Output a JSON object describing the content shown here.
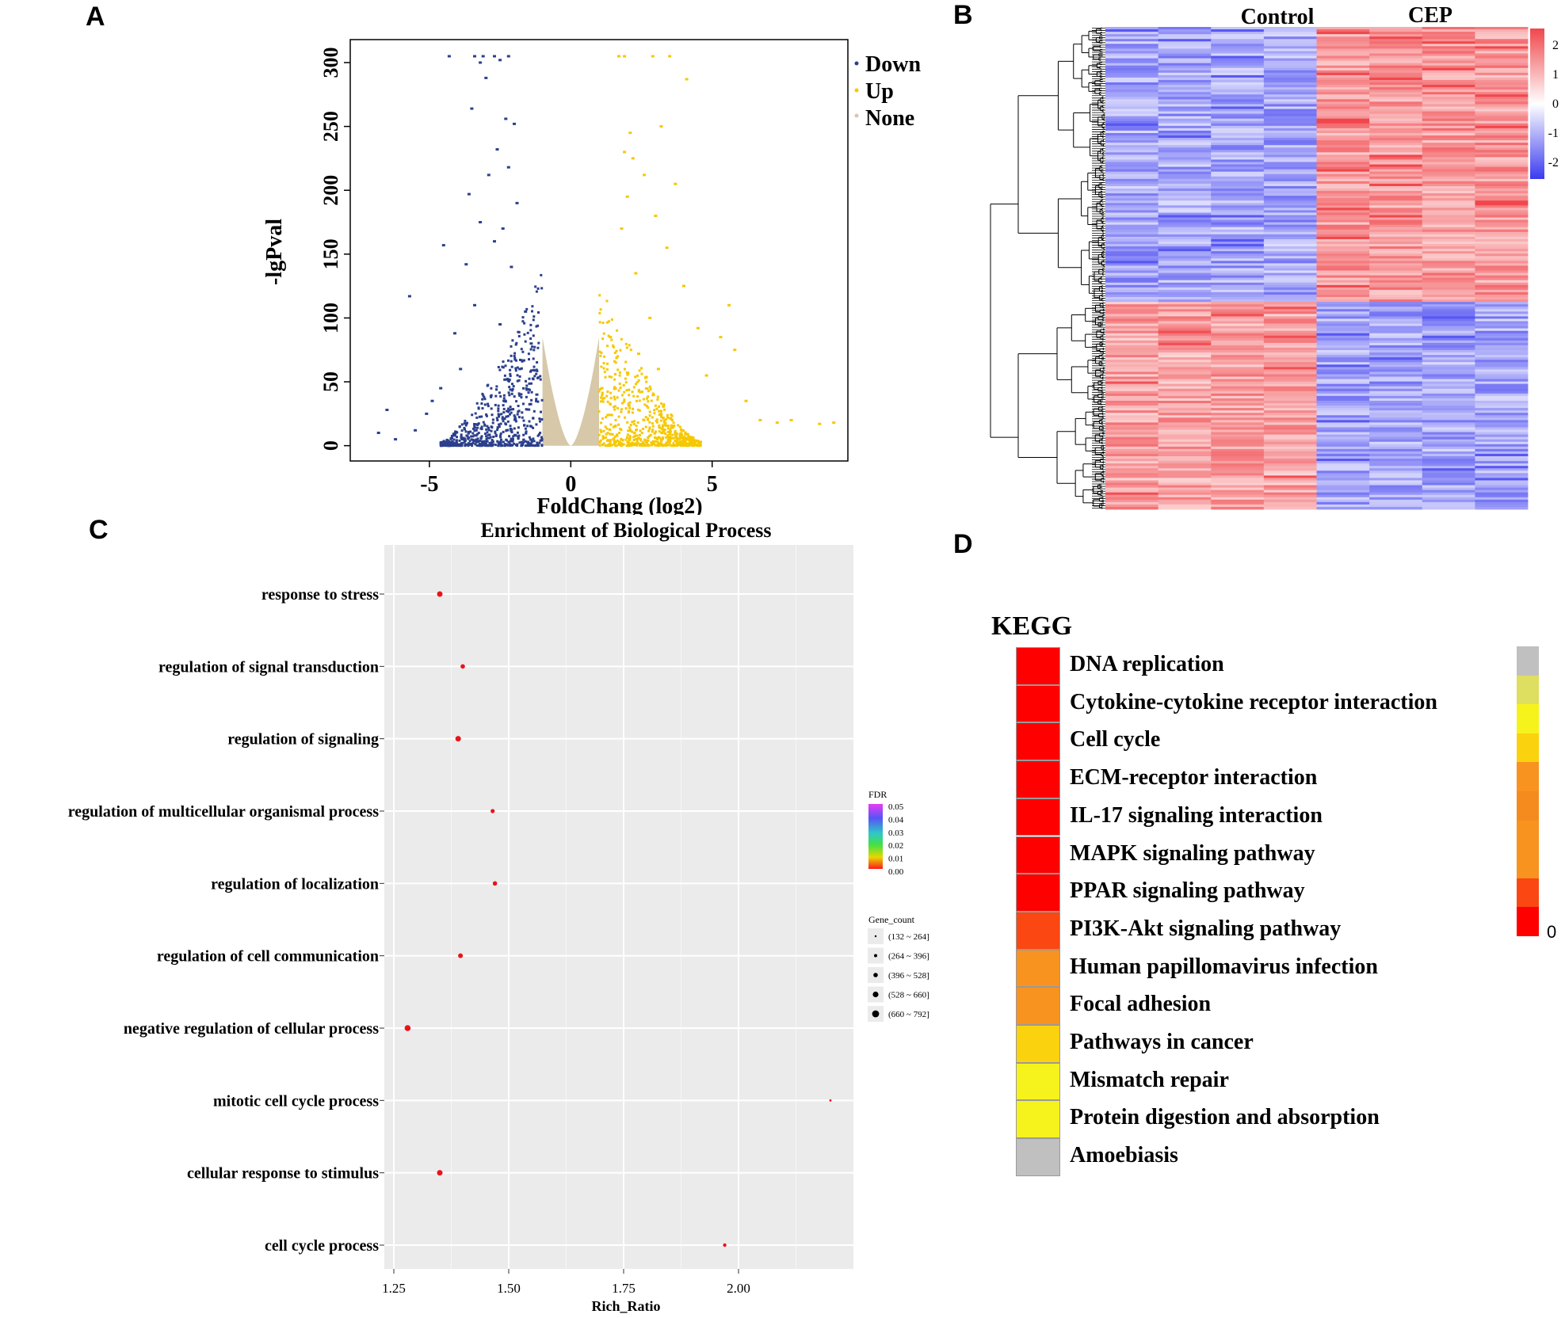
{
  "panels": {
    "a": "A",
    "b": "B",
    "c": "C",
    "d": "D"
  },
  "chart_data": [
    {
      "type": "scatter",
      "panel": "A",
      "xlabel": "FoldChang (log2)",
      "ylabel": "-lgPval",
      "xticks": [
        "-5",
        "0",
        "5"
      ],
      "yticks": [
        "0",
        "50",
        "100",
        "150",
        "200",
        "250",
        "300"
      ],
      "xlim": [
        -7.8,
        9.8
      ],
      "ylim": [
        -12,
        318
      ],
      "legend": [
        {
          "name": "Down",
          "color": "#2b3f8c"
        },
        {
          "name": "Up",
          "color": "#f6c800"
        },
        {
          "name": "None",
          "color": "#d6c8a9"
        }
      ],
      "series": [
        {
          "name": "Down",
          "color": "#2b3f8c",
          "points": [
            [
              -4.3,
              305
            ],
            [
              -3.4,
              305
            ],
            [
              -3.1,
              305
            ],
            [
              -2.7,
              305
            ],
            [
              -2.2,
              305
            ],
            [
              -3.2,
              300
            ],
            [
              -2.5,
              302
            ],
            [
              -3.0,
              288
            ],
            [
              -3.5,
              264
            ],
            [
              -2.3,
              256
            ],
            [
              -2.0,
              252
            ],
            [
              -2.6,
              232
            ],
            [
              -3.6,
              197
            ],
            [
              -2.9,
              212
            ],
            [
              -2.2,
              218
            ],
            [
              -5.7,
              117
            ],
            [
              -4.5,
              157
            ],
            [
              -3.7,
              142
            ],
            [
              -2.4,
              170
            ],
            [
              -1.9,
              190
            ],
            [
              -3.2,
              175
            ],
            [
              -2.7,
              160
            ],
            [
              -4.1,
              88
            ],
            [
              -6.5,
              28
            ],
            [
              -6.8,
              10
            ],
            [
              -6.2,
              5
            ],
            [
              -5.5,
              12
            ],
            [
              -5.1,
              25
            ],
            [
              -4.6,
              45
            ],
            [
              -4.9,
              35
            ],
            [
              -3.9,
              60
            ],
            [
              -2.1,
              140
            ],
            [
              -1.6,
              105
            ],
            [
              -1.4,
              80
            ],
            [
              -1.8,
              60
            ],
            [
              -2.5,
              95
            ],
            [
              -3.4,
              110
            ],
            [
              -1.2,
              40
            ]
          ],
          "fill": [
            -4.6,
            -1.0,
            3,
            135
          ]
        },
        {
          "name": "Up",
          "color": "#f6c800",
          "points": [
            [
              1.7,
              305
            ],
            [
              1.9,
              305
            ],
            [
              2.9,
              305
            ],
            [
              3.5,
              305
            ],
            [
              4.1,
              287
            ],
            [
              3.2,
              250
            ],
            [
              2.1,
              245
            ],
            [
              1.9,
              230
            ],
            [
              2.2,
              225
            ],
            [
              3.7,
              205
            ],
            [
              2.6,
              212
            ],
            [
              2.0,
              195
            ],
            [
              3.0,
              180
            ],
            [
              1.8,
              170
            ],
            [
              3.4,
              155
            ],
            [
              2.3,
              135
            ],
            [
              4.5,
              92
            ],
            [
              5.6,
              110
            ],
            [
              5.8,
              75
            ],
            [
              5.3,
              85
            ],
            [
              4.8,
              55
            ],
            [
              6.2,
              35
            ],
            [
              6.7,
              20
            ],
            [
              7.3,
              18
            ],
            [
              7.8,
              20
            ],
            [
              8.8,
              17
            ],
            [
              9.3,
              18
            ],
            [
              4.0,
              125
            ],
            [
              2.8,
              100
            ],
            [
              1.4,
              85
            ],
            [
              1.1,
              45
            ],
            [
              3.1,
              60
            ],
            [
              2.4,
              72
            ]
          ],
          "fill": [
            1.0,
            4.6,
            3,
            125
          ]
        }
      ],
      "none_band": [
        -1.0,
        1.0,
        85
      ]
    },
    {
      "type": "heatmap",
      "panel": "B",
      "groups": [
        "Control",
        "CEP"
      ],
      "columns": 8,
      "colorbar_ticks": [
        "2",
        "1",
        "0",
        "-1",
        "-2"
      ],
      "colors": {
        "low": "#3b3bf0",
        "mid": "#ffffff",
        "high": "#f0474c"
      },
      "clusters_top_rows_fraction": 0.57,
      "pattern": "Control low / CEP high in top cluster; Control high / CEP low in bottom cluster"
    },
    {
      "type": "scatter",
      "panel": "C",
      "title": "Enrichment of Biological Process",
      "xlabel": "Rich_Ratio",
      "xticks": [
        "1.25",
        "1.50",
        "1.75",
        "2.00"
      ],
      "xlim": [
        1.25,
        2.25
      ],
      "categories": [
        "response to stress",
        "regulation of signal transduction",
        "regulation of signaling",
        "regulation of multicellular organismal process",
        "regulation of localization",
        "regulation of cell communication",
        "negative regulation of cellular process",
        "mitotic cell cycle process",
        "cellular response to stimulus",
        "cell cycle process"
      ],
      "values": [
        1.35,
        1.4,
        1.39,
        1.465,
        1.47,
        1.395,
        1.28,
        2.2,
        1.35,
        1.97
      ],
      "sizes": [
        3.5,
        2.8,
        3.5,
        2.6,
        2.8,
        3.0,
        3.8,
        1.4,
        3.5,
        2.2
      ],
      "color": "#e8141b",
      "fdr_legend": {
        "title": "FDR",
        "ticks": [
          "0.05",
          "0.04",
          "0.03",
          "0.02",
          "0.01",
          "0.00"
        ]
      },
      "size_legend": {
        "title": "Gene_count",
        "items": [
          "(132 ~ 264]",
          "(264 ~ 396]",
          "(396 ~ 528]",
          "(528 ~ 660]",
          "(660 ~ 792]"
        ]
      }
    },
    {
      "type": "heatmap",
      "panel": "D",
      "title": "KEGG",
      "categories": [
        "DNA replication",
        "Cytokine-cytokine receptor interaction",
        "Cell cycle",
        "ECM-receptor interaction",
        "IL-17 signaling interaction",
        "MAPK signaling pathway",
        "PPAR signaling pathway",
        "PI3K-Akt signaling pathway",
        "Human papillomavirus infection",
        "Focal adhesion",
        "Pathways in cancer",
        "Mismatch repair",
        "Protein digestion and absorption",
        "Amoebiasis"
      ],
      "colors": [
        "#ff0000",
        "#ff0000",
        "#ff0000",
        "#ff0000",
        "#ff0000",
        "#ff0000",
        "#ff0000",
        "#fb4712",
        "#f7931e",
        "#f7931e",
        "#fbd20e",
        "#f6f31c",
        "#f6f31c",
        "#c0c0c0"
      ],
      "scale_colors": [
        "#c0c0c0",
        "#dede60",
        "#f6f31c",
        "#fbd20e",
        "#f7931e",
        "#f58a1e",
        "#f7931e",
        "#f7931e",
        "#fb4712",
        "#ff0000"
      ],
      "scale_min_label": "0"
    }
  ]
}
